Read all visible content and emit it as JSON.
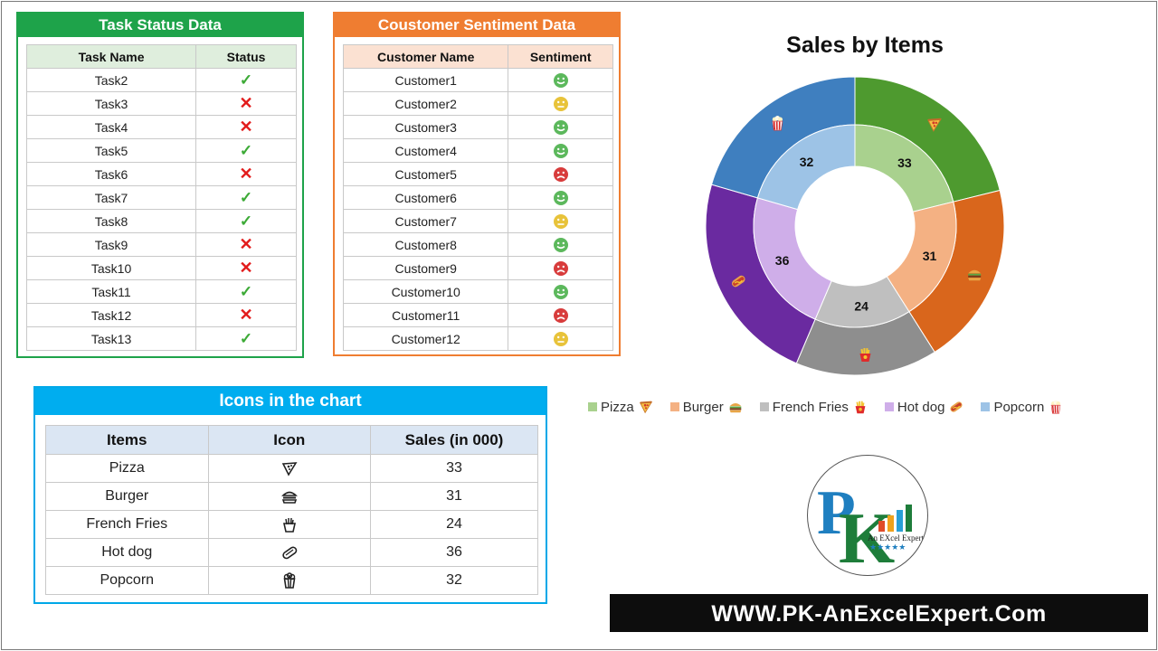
{
  "task_panel": {
    "title": "Task Status Data",
    "columns": [
      "Task Name",
      "Status"
    ],
    "rows": [
      {
        "name": "Task2",
        "status": "done"
      },
      {
        "name": "Task3",
        "status": "failed"
      },
      {
        "name": "Task4",
        "status": "failed"
      },
      {
        "name": "Task5",
        "status": "done"
      },
      {
        "name": "Task6",
        "status": "failed"
      },
      {
        "name": "Task7",
        "status": "done"
      },
      {
        "name": "Task8",
        "status": "done"
      },
      {
        "name": "Task9",
        "status": "failed"
      },
      {
        "name": "Task10",
        "status": "failed"
      },
      {
        "name": "Task11",
        "status": "done"
      },
      {
        "name": "Task12",
        "status": "failed"
      },
      {
        "name": "Task13",
        "status": "done"
      }
    ]
  },
  "customer_panel": {
    "title": "Coustomer Sentiment Data",
    "columns": [
      "Customer Name",
      "Sentiment"
    ],
    "rows": [
      {
        "name": "Customer1",
        "sentiment": "happy"
      },
      {
        "name": "Customer2",
        "sentiment": "neutral"
      },
      {
        "name": "Customer3",
        "sentiment": "happy"
      },
      {
        "name": "Customer4",
        "sentiment": "happy"
      },
      {
        "name": "Customer5",
        "sentiment": "sad"
      },
      {
        "name": "Customer6",
        "sentiment": "happy"
      },
      {
        "name": "Customer7",
        "sentiment": "neutral"
      },
      {
        "name": "Customer8",
        "sentiment": "happy"
      },
      {
        "name": "Customer9",
        "sentiment": "sad"
      },
      {
        "name": "Customer10",
        "sentiment": "happy"
      },
      {
        "name": "Customer11",
        "sentiment": "sad"
      },
      {
        "name": "Customer12",
        "sentiment": "neutral"
      }
    ],
    "colors": {
      "happy": "#5cb85c",
      "neutral": "#e8c33a",
      "sad": "#d83c3c"
    }
  },
  "icons_panel": {
    "title": "Icons in the chart",
    "columns": [
      "Items",
      "Icon",
      "Sales (in 000)"
    ],
    "rows": [
      {
        "item": "Pizza",
        "icon": "pizza-icon",
        "sales": "33"
      },
      {
        "item": "Burger",
        "icon": "burger-icon",
        "sales": "31"
      },
      {
        "item": "French Fries",
        "icon": "fries-icon",
        "sales": "24"
      },
      {
        "item": "Hot dog",
        "icon": "hotdog-icon",
        "sales": "36"
      },
      {
        "item": "Popcorn",
        "icon": "popcorn-icon",
        "sales": "32"
      }
    ]
  },
  "chart_data": {
    "type": "pie",
    "title": "Sales by Items",
    "categories": [
      "Pizza",
      "Burger",
      "French Fries",
      "Hot dog",
      "Popcorn"
    ],
    "values": [
      33,
      31,
      24,
      36,
      32
    ],
    "inner_colors": [
      "#a9d18e",
      "#f4b183",
      "#bfbfbf",
      "#cfaee9",
      "#9dc3e6"
    ],
    "outer_colors": [
      "#4e9a2f",
      "#d9661c",
      "#8e8e8e",
      "#6a2aa0",
      "#3f7fbf"
    ],
    "icons": [
      "pizza-icon",
      "burger-icon",
      "fries-icon",
      "hotdog-icon",
      "popcorn-icon"
    ],
    "legend": {
      "position": "bottom"
    }
  },
  "logo": {
    "caption": "An EXcel Expert",
    "stars": "★★★★★"
  },
  "banner": {
    "text": "WWW.PK-AnExcelExpert.Com"
  }
}
